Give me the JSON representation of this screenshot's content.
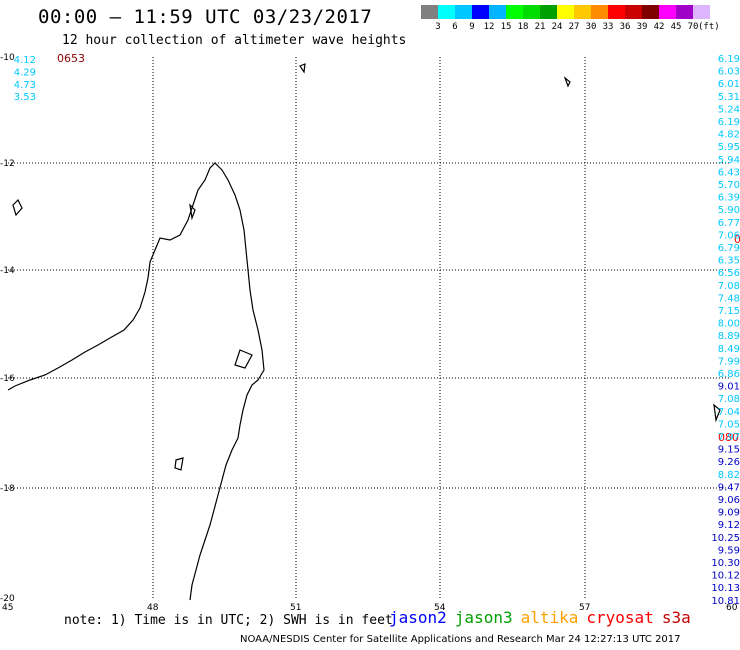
{
  "header": {
    "title": "00:00 – 11:59 UTC 03/23/2017",
    "subtitle": "12 hour collection of altimeter wave heights"
  },
  "scale": {
    "colors": [
      "#808080",
      "#00ffff",
      "#00c8ff",
      "#0000ff",
      "#00b4ff",
      "#00ff00",
      "#00dc00",
      "#00a000",
      "#ffff00",
      "#ffc800",
      "#ff8c00",
      "#ff0000",
      "#c80000",
      "#800000",
      "#ff00ff",
      "#a000c8",
      "#dcb4ff"
    ],
    "labels": [
      "3",
      "6",
      "9",
      "12",
      "15",
      "18",
      "21",
      "24",
      "27",
      "30",
      "33",
      "36",
      "39",
      "42",
      "45",
      "70"
    ],
    "unit": "(ft)"
  },
  "axes": {
    "lat_labels": [
      "-10",
      "-12",
      "-14",
      "-16",
      "-18",
      "-20"
    ],
    "lon_labels": [
      "45",
      "48",
      "51",
      "54",
      "57",
      "60"
    ]
  },
  "passes": {
    "top_left": {
      "label": "0653",
      "color": "#8b0000"
    },
    "right_mid": {
      "label": "080",
      "color": "#ff0000"
    },
    "right_upper": {
      "label": "0",
      "color": "#ff0000"
    }
  },
  "track_left": {
    "values": [
      "4.12",
      "4.29",
      "4.73",
      "3.53"
    ],
    "colors": [
      "#00c8ff",
      "#00c8ff",
      "#00c8ff",
      "#00c8ff"
    ]
  },
  "track_right": {
    "values": [
      "6.19",
      "6.03",
      "6.01",
      "5.31",
      "5.24",
      "6.19",
      "4.82",
      "5.95",
      "5.94",
      "6.43",
      "5.70",
      "6.39",
      "5.90",
      "6.77",
      "7.06",
      "6.79",
      "6.35",
      "6.56",
      "7.08",
      "7.48",
      "7.15",
      "8.00",
      "8.89",
      "8.49",
      "7.99",
      "6.86",
      "9.01",
      "7.08",
      "7.04",
      "7.05",
      "7.97",
      "9.15",
      "9.26",
      "8.82",
      "9.47",
      "9.06",
      "9.09",
      "9.12",
      "10.25",
      "9.59",
      "10.30",
      "10.12",
      "10.13",
      "10.81"
    ],
    "colors": [
      "#00c8ff",
      "#00c8ff",
      "#00c8ff",
      "#00c8ff",
      "#00c8ff",
      "#00c8ff",
      "#00c8ff",
      "#00c8ff",
      "#00c8ff",
      "#00c8ff",
      "#00c8ff",
      "#00c8ff",
      "#00c8ff",
      "#00c8ff",
      "#00c8ff",
      "#00c8ff",
      "#00c8ff",
      "#00c8ff",
      "#00c8ff",
      "#00c8ff",
      "#00c8ff",
      "#00c8ff",
      "#00c8ff",
      "#00c8ff",
      "#00c8ff",
      "#00c8ff",
      "#0000c8",
      "#00c8ff",
      "#00c8ff",
      "#00c8ff",
      "#00c8ff",
      "#0000c8",
      "#0000c8",
      "#00c8ff",
      "#0000c8",
      "#0000c8",
      "#0000c8",
      "#0000c8",
      "#0000c8",
      "#0000c8",
      "#0000c8",
      "#0000c8",
      "#0000c8",
      "#0000c8"
    ]
  },
  "footer": {
    "note": "note: 1) Time is in UTC; 2) SWH is in feet",
    "legend": [
      {
        "name": "jason2",
        "color": "#0000ff"
      },
      {
        "name": "jason3",
        "color": "#00a000"
      },
      {
        "name": "altika",
        "color": "#ffa000"
      },
      {
        "name": "cryosat",
        "color": "#ff0000"
      },
      {
        "name": "s3a",
        "color": "#c80000"
      }
    ],
    "credit": "NOAA/NESDIS Center for Satellite Applications and Research   Mar 24 12:27:13 UTC 2017"
  }
}
